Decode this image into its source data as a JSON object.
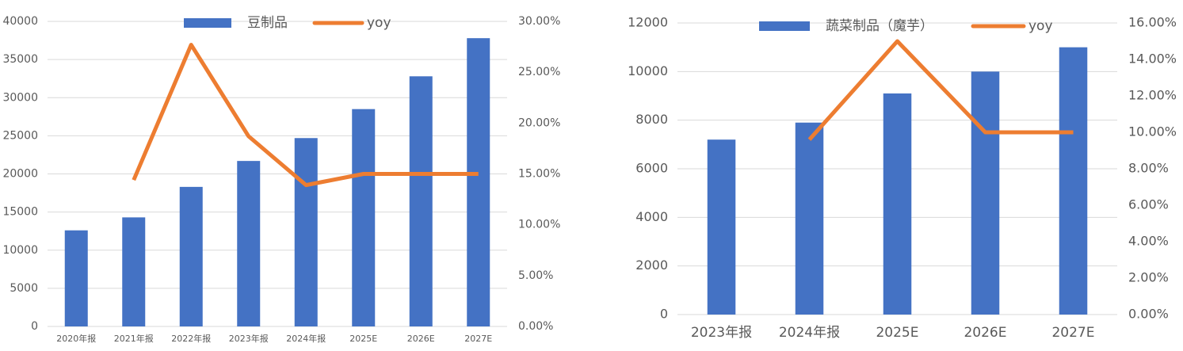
{
  "chart_data": [
    {
      "type": "combo",
      "categories": [
        "2020年报",
        "2021年报",
        "2022年报",
        "2023年报",
        "2024年报",
        "2025E",
        "2026E",
        "2027E"
      ],
      "series": [
        {
          "name": "豆制品",
          "type": "bar",
          "color": "#4472c4",
          "values": [
            12600,
            14300,
            18300,
            21700,
            24700,
            28500,
            32800,
            37800
          ]
        },
        {
          "name": "yoy",
          "type": "line",
          "axis": "y2",
          "color": "#ed7d31",
          "values": [
            null,
            14.4,
            27.7,
            18.7,
            13.9,
            15.0,
            15.0,
            15.0
          ]
        }
      ],
      "ylim": [
        0,
        40000
      ],
      "yticks": [
        0,
        5000,
        10000,
        15000,
        20000,
        25000,
        30000,
        35000,
        40000
      ],
      "y2lim": [
        0,
        30
      ],
      "y2ticks": [
        {
          "value": 0,
          "label": "0.00%"
        },
        {
          "value": 5,
          "label": "5.00%"
        },
        {
          "value": 10,
          "label": "10.00%"
        },
        {
          "value": 15,
          "label": "15.00%"
        },
        {
          "value": 20,
          "label": "20.00%"
        },
        {
          "value": 25,
          "label": "25.00%"
        },
        {
          "value": 30,
          "label": "30.00%"
        }
      ],
      "grid": true,
      "legend": "top"
    },
    {
      "type": "combo",
      "categories": [
        "2023年报",
        "2024年报",
        "2025E",
        "2026E",
        "2027E"
      ],
      "series": [
        {
          "name": "蔬菜制品（魔芋）",
          "type": "bar",
          "color": "#4472c4",
          "values": [
            7200,
            7900,
            9100,
            10000,
            11000
          ]
        },
        {
          "name": "yoy",
          "type": "line",
          "axis": "y2",
          "color": "#ed7d31",
          "values": [
            null,
            9.6,
            15.0,
            10.0,
            10.0
          ]
        }
      ],
      "ylim": [
        0,
        12000
      ],
      "yticks": [
        0,
        2000,
        4000,
        6000,
        8000,
        10000,
        12000
      ],
      "y2lim": [
        0,
        16
      ],
      "y2ticks": [
        {
          "value": 0,
          "label": "0.00%"
        },
        {
          "value": 2,
          "label": "2.00%"
        },
        {
          "value": 4,
          "label": "4.00%"
        },
        {
          "value": 6,
          "label": "6.00%"
        },
        {
          "value": 8,
          "label": "8.00%"
        },
        {
          "value": 10,
          "label": "10.00%"
        },
        {
          "value": 12,
          "label": "12.00%"
        },
        {
          "value": 14,
          "label": "14.00%"
        },
        {
          "value": 16,
          "label": "16.00%"
        }
      ],
      "grid": true,
      "legend": "top"
    }
  ]
}
